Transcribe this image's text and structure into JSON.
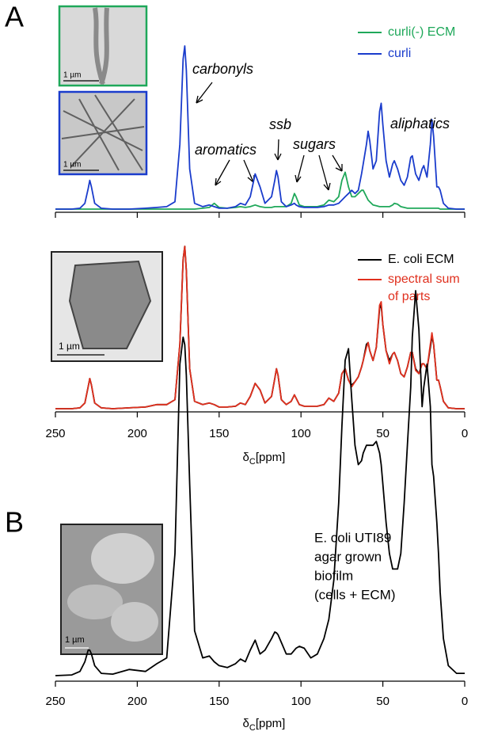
{
  "panel_labels": [
    "A",
    "B"
  ],
  "insets": [
    {
      "scale": "1 µm"
    },
    {
      "scale": "1 µm"
    },
    {
      "scale": "1 µm"
    },
    {
      "scale": "1 µm"
    }
  ],
  "panel_b_text": [
    "E. coli UTI89",
    "agar grown",
    "biofilm",
    "(cells + ECM)"
  ],
  "chart_data": [
    {
      "type": "line",
      "xlim": [
        250,
        0
      ],
      "ylim": [
        0,
        100
      ],
      "xticks": [
        250,
        200,
        150,
        100,
        50,
        0
      ],
      "tick_labels": false,
      "annotations": [
        "carbonyls",
        "aromatics",
        "ssb",
        "sugars",
        "aliphatics"
      ],
      "x": [
        250,
        240,
        235,
        232,
        230,
        229,
        228,
        226,
        222,
        215,
        205,
        195,
        188,
        182,
        177,
        174,
        172,
        171,
        170,
        168,
        165,
        160,
        156,
        153,
        150,
        145,
        140,
        137,
        134,
        131,
        128,
        125,
        122,
        118,
        116,
        115,
        114,
        112,
        109,
        106,
        104,
        103,
        101,
        98,
        94,
        90,
        86,
        83,
        80,
        77,
        75,
        73,
        71,
        69,
        67,
        65,
        63,
        62,
        60,
        59,
        58,
        56,
        54,
        52,
        51,
        50,
        48,
        46,
        44,
        43,
        41,
        39,
        37,
        35,
        33,
        32,
        30,
        28,
        26,
        25,
        23,
        21,
        20,
        19,
        17,
        16,
        15,
        13,
        10,
        5,
        0
      ],
      "series": [
        {
          "name": "curli(-) ECM",
          "color": "#1fa85a",
          "values": [
            0.5,
            0.5,
            0.5,
            0.5,
            0.5,
            0.5,
            0.5,
            0.5,
            0.5,
            0.5,
            0.5,
            0.5,
            0.5,
            0.5,
            0.5,
            0.5,
            0.5,
            0.5,
            0.5,
            0.5,
            0.5,
            1,
            1.5,
            4,
            1.5,
            1,
            1.5,
            2,
            1.5,
            2,
            3,
            2,
            1.5,
            1.5,
            2,
            2,
            2,
            2,
            2,
            4,
            10,
            8,
            3,
            2,
            2,
            2,
            3,
            6,
            5,
            8,
            18,
            23,
            14,
            8,
            8,
            10,
            12,
            12,
            8,
            6,
            5,
            3,
            2.5,
            2,
            2,
            2,
            2,
            2,
            3,
            4,
            3.5,
            2,
            1.5,
            1,
            1,
            1,
            1,
            1,
            1,
            1,
            1,
            1,
            1,
            1,
            1,
            1,
            0.5,
            0.5,
            0.5,
            0.5,
            0.5
          ]
        },
        {
          "name": "curli",
          "color": "#1a3ccc",
          "values": [
            0.5,
            0.5,
            1,
            4,
            13,
            18,
            14,
            4,
            1,
            0.5,
            0.5,
            1,
            1.5,
            2,
            5,
            40,
            92,
            100,
            85,
            25,
            4,
            2,
            3,
            2,
            1,
            1,
            2,
            4,
            3,
            8,
            22,
            14,
            4,
            8,
            18,
            24,
            20,
            5,
            2,
            3,
            4,
            3,
            2,
            1.5,
            1.5,
            1.5,
            2,
            3,
            3,
            4,
            6,
            8,
            10,
            12,
            10,
            12,
            22,
            28,
            40,
            48,
            42,
            25,
            30,
            60,
            65,
            52,
            30,
            20,
            28,
            30,
            25,
            18,
            15,
            20,
            32,
            33,
            22,
            18,
            25,
            27,
            20,
            40,
            55,
            45,
            14,
            14,
            12,
            4,
            1,
            0.5,
            0.5
          ]
        }
      ]
    },
    {
      "type": "line",
      "xlim": [
        250,
        0
      ],
      "ylim": [
        0,
        100
      ],
      "xticks": [
        250,
        200,
        150,
        100,
        50,
        0
      ],
      "tick_labels": true,
      "xlabel": [
        "δ",
        "C",
        "[ppm]"
      ],
      "x": [
        250,
        240,
        235,
        232,
        230,
        229,
        228,
        226,
        222,
        215,
        205,
        195,
        188,
        182,
        177,
        174,
        172,
        171,
        170,
        168,
        165,
        160,
        156,
        153,
        150,
        145,
        140,
        137,
        134,
        131,
        128,
        125,
        122,
        118,
        116,
        115,
        114,
        112,
        109,
        106,
        104,
        103,
        101,
        98,
        94,
        90,
        86,
        83,
        80,
        77,
        75,
        73,
        71,
        69,
        67,
        65,
        63,
        62,
        60,
        59,
        58,
        56,
        54,
        52,
        51,
        50,
        48,
        46,
        44,
        43,
        41,
        39,
        37,
        35,
        33,
        32,
        30,
        28,
        26,
        25,
        23,
        21,
        20,
        19,
        17,
        16,
        15,
        13,
        10,
        5,
        0
      ],
      "series": [
        {
          "name": "E. coli ECM",
          "color": "#000000",
          "values": [
            0.5,
            0.5,
            1,
            4,
            14,
            19,
            15,
            4,
            1,
            0.5,
            1,
            1.5,
            3,
            3,
            6,
            40,
            92,
            100,
            85,
            25,
            5,
            3,
            4,
            3,
            1.5,
            1.5,
            2,
            4,
            3,
            8,
            16,
            12,
            4,
            8,
            19,
            25,
            21,
            6,
            3,
            5,
            9,
            7,
            3,
            2,
            2,
            2,
            3,
            7,
            5,
            10,
            22,
            25,
            18,
            15,
            17,
            20,
            26,
            30,
            40,
            41,
            36,
            30,
            38,
            62,
            64,
            52,
            36,
            30,
            34,
            35,
            30,
            22,
            20,
            26,
            35,
            35,
            25,
            22,
            28,
            28,
            25,
            38,
            45,
            40,
            18,
            18,
            14,
            5,
            1,
            0.5,
            0.5
          ]
        },
        {
          "name": "spectral sum of parts",
          "color": "#e0301e",
          "values": [
            0.5,
            0.5,
            1,
            4,
            14,
            19,
            15,
            4,
            1,
            0.5,
            1,
            1.5,
            3,
            3,
            6,
            40,
            92,
            100,
            85,
            25,
            5,
            3,
            4,
            3,
            1.5,
            1.5,
            2,
            4,
            3,
            8,
            16,
            12,
            4,
            8,
            19,
            25,
            21,
            6,
            3,
            5,
            9,
            7,
            3,
            2,
            2,
            2,
            3,
            7,
            5,
            10,
            22,
            25,
            18,
            14,
            17,
            20,
            26,
            30,
            38,
            41,
            36,
            30,
            38,
            64,
            66,
            52,
            36,
            28,
            34,
            35,
            30,
            22,
            20,
            26,
            35,
            35,
            24,
            22,
            28,
            28,
            25,
            40,
            47,
            40,
            18,
            18,
            14,
            5,
            1,
            0.5,
            0.5
          ]
        }
      ]
    },
    {
      "type": "line",
      "xlim": [
        250,
        0
      ],
      "ylim": [
        0,
        100
      ],
      "xticks": [
        250,
        200,
        150,
        100,
        50,
        0
      ],
      "tick_labels": true,
      "xlabel": [
        "δ",
        "C",
        "[ppm]"
      ],
      "x": [
        250,
        240,
        235,
        232,
        230,
        229,
        228,
        226,
        222,
        215,
        205,
        195,
        188,
        182,
        177,
        174,
        172,
        171,
        170,
        168,
        165,
        160,
        156,
        153,
        150,
        145,
        140,
        137,
        134,
        131,
        128,
        125,
        122,
        118,
        116,
        115,
        114,
        112,
        109,
        106,
        104,
        103,
        101,
        98,
        94,
        90,
        86,
        83,
        80,
        77,
        75,
        73,
        71,
        69,
        67,
        65,
        63,
        62,
        60,
        59,
        58,
        56,
        54,
        52,
        51,
        50,
        48,
        46,
        44,
        43,
        41,
        39,
        37,
        35,
        33,
        32,
        30,
        28,
        26,
        25,
        23,
        21,
        20,
        19,
        17,
        16,
        15,
        13,
        10,
        5,
        0
      ],
      "series": [
        {
          "name": "E. coli UTI89 biofilm",
          "color": "#000000",
          "values": [
            0.4,
            0.6,
            1.5,
            4,
            7,
            7,
            6,
            3,
            1,
            0.8,
            2,
            1.5,
            3.5,
            5,
            32,
            81,
            88,
            86,
            78,
            50,
            12,
            5,
            5.5,
            4,
            3,
            2.5,
            3.5,
            4.7,
            4,
            7,
            9.6,
            6,
            7,
            10,
            11.7,
            11.5,
            11,
            9,
            6,
            6,
            7,
            7.5,
            8,
            7.5,
            5,
            6,
            10,
            15,
            25,
            45,
            65,
            82,
            85,
            72,
            60,
            55,
            56,
            58,
            60,
            60,
            60,
            60,
            61,
            58,
            55,
            50,
            40,
            32,
            28,
            28,
            28,
            32,
            45,
            60,
            75,
            88,
            100,
            90,
            70,
            75,
            81,
            70,
            55,
            52,
            40,
            32,
            22,
            10,
            3,
            1,
            1
          ]
        }
      ]
    }
  ]
}
